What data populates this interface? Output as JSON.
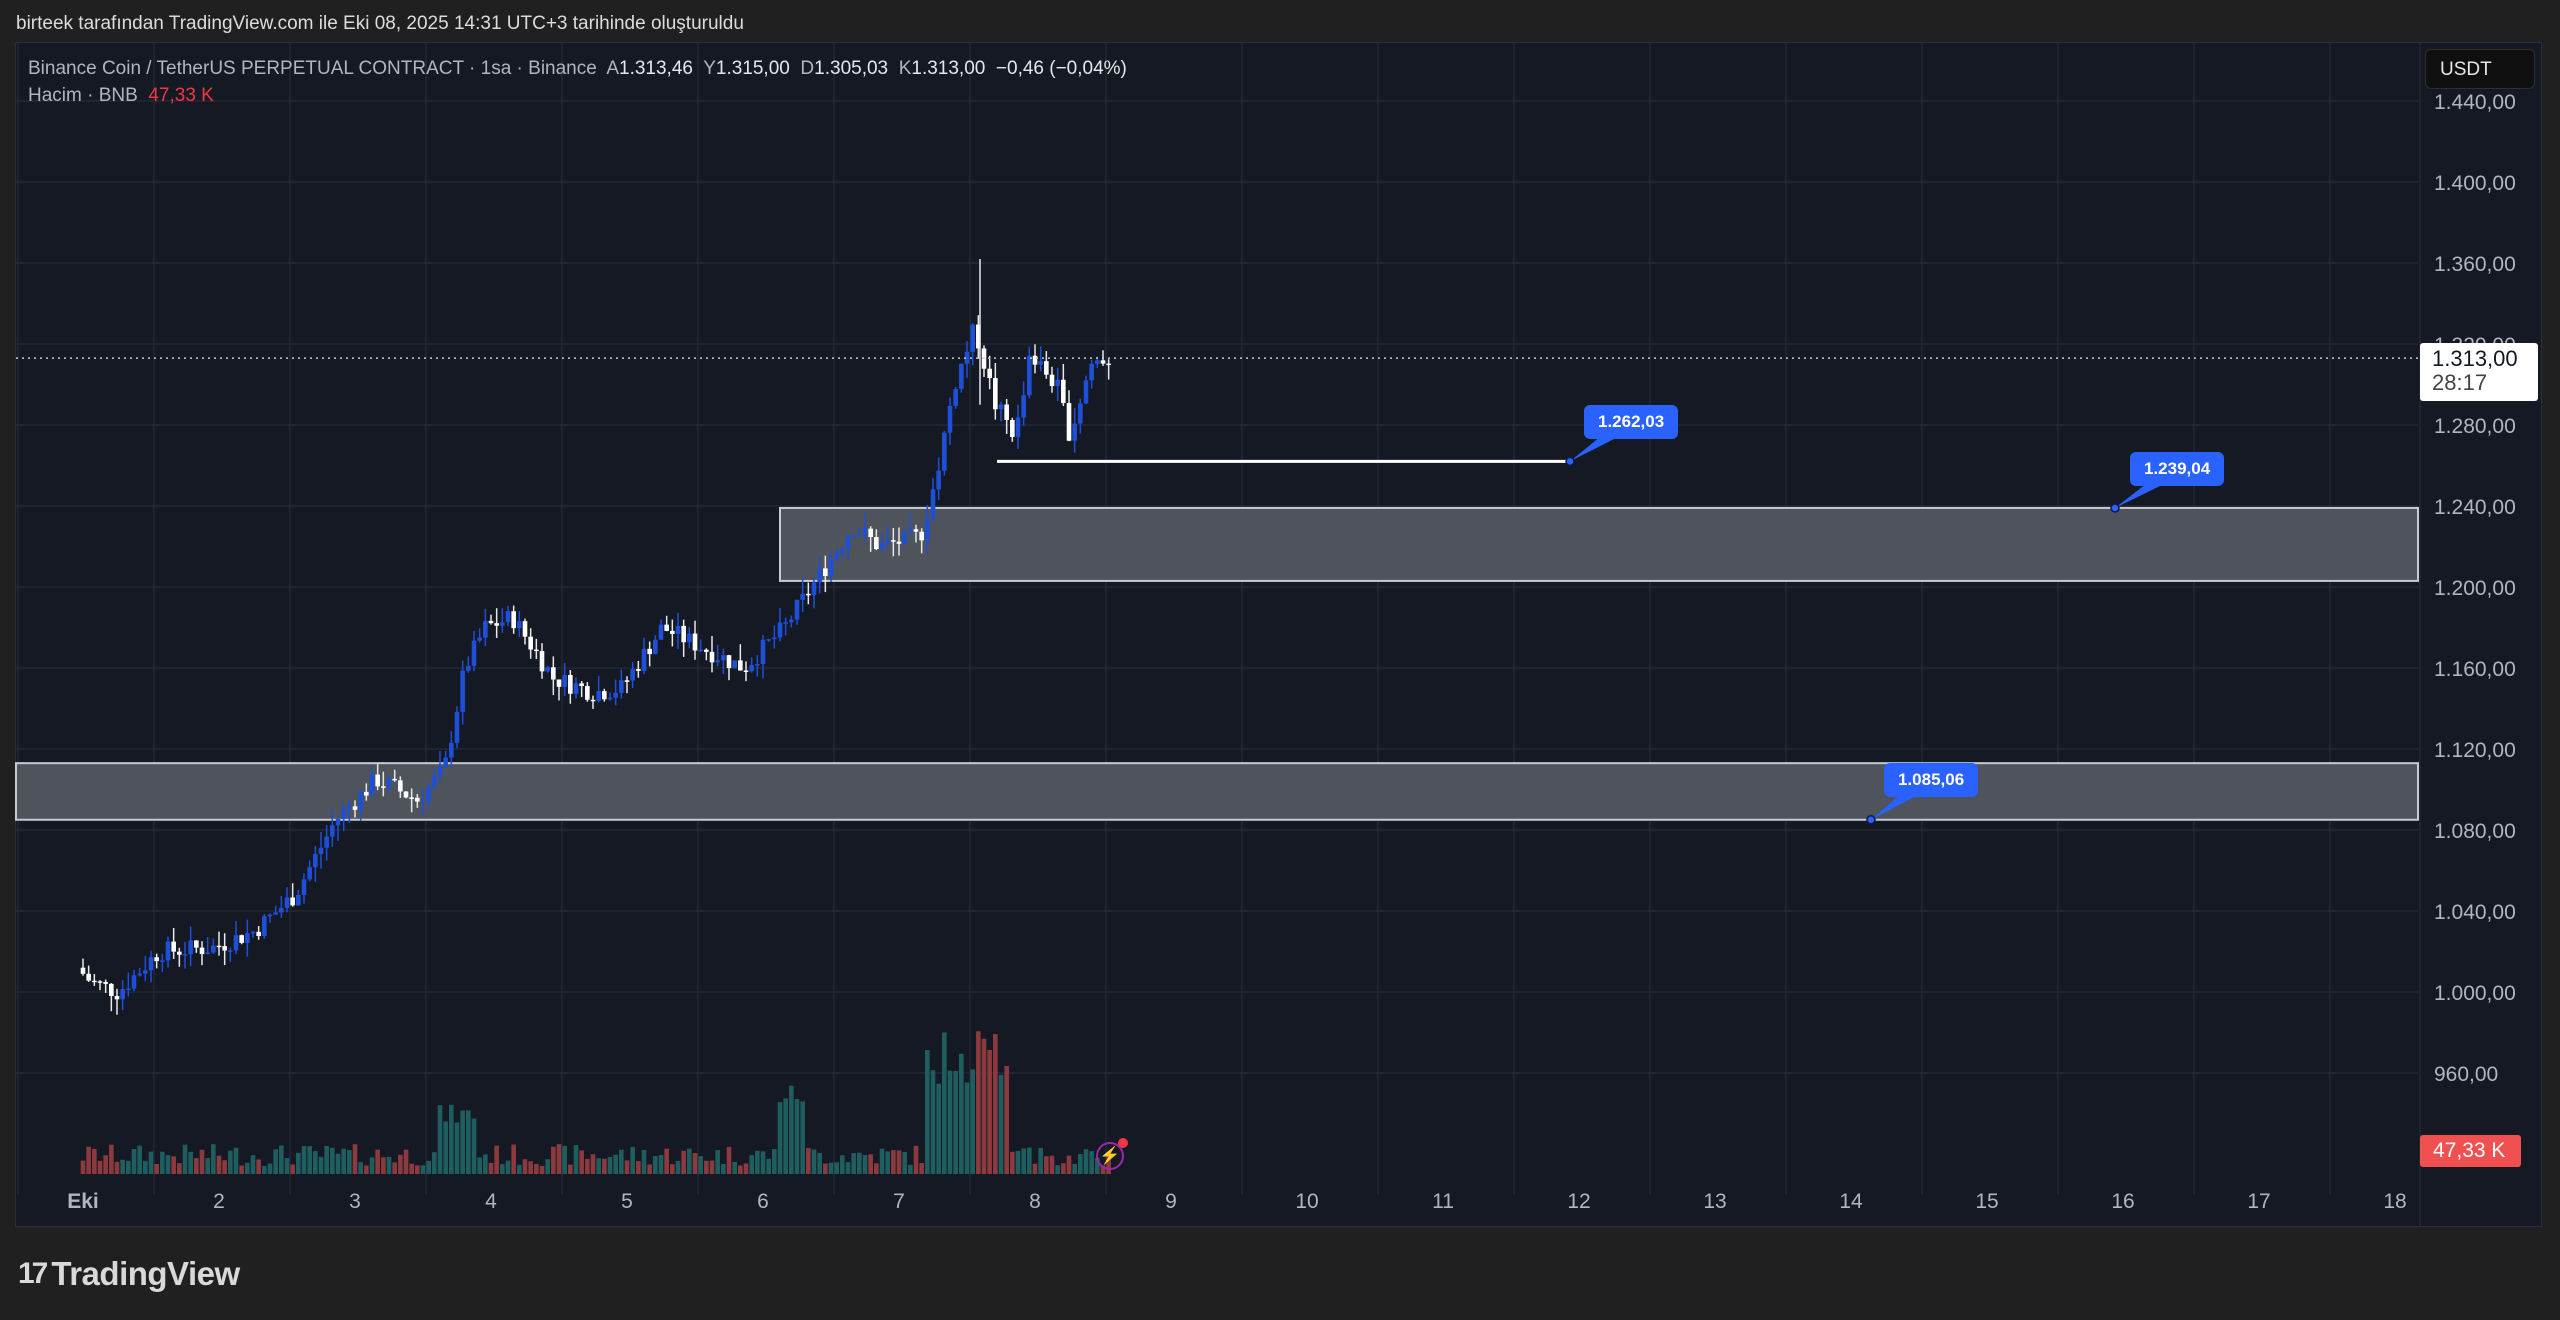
{
  "caption": "birteek tarafından TradingView.com ile Eki 08, 2025 14:31 UTC+3 tarihinde oluşturuldu",
  "legend": {
    "symbol": "Binance Coin / TetherUS PERPETUAL CONTRACT · 1sa · Binance",
    "open_label": "A",
    "open": "1.313,46",
    "high_label": "Y",
    "high": "1.315,00",
    "low_label": "D",
    "low": "1.305,03",
    "close_label": "K",
    "close": "1.313,00",
    "change": "−0,46 (−0,04%)",
    "volume_label": "Hacim · BNB",
    "volume_value": "47,33 K"
  },
  "currency_button": "USDT",
  "last_price": {
    "price": "1.313,00",
    "countdown": "28:17"
  },
  "volume_tag": "47,33 K",
  "callouts": [
    {
      "label": "1.262,03",
      "price": 1262.03
    },
    {
      "label": "1.239,04",
      "price": 1239.04
    },
    {
      "label": "1.085,06",
      "price": 1085.06
    }
  ],
  "logo_text": "TradingView",
  "colors": {
    "background": "#151924",
    "up_candle": "#1e4fd8",
    "down_candle": "#ffffff",
    "volume_up": "#1f5e5f",
    "volume_down": "#8c3a3e",
    "zone_fill": "#555861",
    "callout": "#2962ff",
    "volume_tag": "#f05050"
  },
  "chart_data": {
    "type": "candlestick",
    "title": "Binance Coin / TetherUS PERPETUAL CONTRACT · 1sa · Binance",
    "xlabel": "",
    "ylabel": "USDT",
    "x_ticks": [
      "Eki",
      "2",
      "3",
      "4",
      "5",
      "6",
      "7",
      "8",
      "9",
      "10",
      "11",
      "12",
      "13",
      "14",
      "15",
      "16",
      "17",
      "18"
    ],
    "y_ticks": [
      "1.440,00",
      "1.400,00",
      "1.360,00",
      "1.320,00",
      "1.280,00",
      "1.240,00",
      "1.200,00",
      "1.160,00",
      "1.120,00",
      "1.080,00",
      "1.040,00",
      "1.000,00",
      "960,00"
    ],
    "ylim": [
      940,
      1450
    ],
    "grid": true,
    "price_path_daily_closes": [
      {
        "day": "Eki 1",
        "close": 1020
      },
      {
        "day": "2",
        "close": 1025
      },
      {
        "day": "3",
        "close": 1100
      },
      {
        "day": "4",
        "close": 1175
      },
      {
        "day": "5",
        "close": 1155
      },
      {
        "day": "6",
        "close": 1185
      },
      {
        "day": "7",
        "close": 1225
      },
      {
        "day": "8",
        "close": 1313
      }
    ],
    "session_high": 1362,
    "last_close": 1313.0,
    "zones": [
      {
        "name": "upper-zone",
        "top": 1239.04,
        "bottom": 1203,
        "from": "6",
        "to": "extends right"
      },
      {
        "name": "lower-zone",
        "top": 1113,
        "bottom": 1085.06,
        "from": "Eki 1",
        "to": "extends right"
      }
    ],
    "horizontal_line": {
      "price": 1262.03,
      "from": "7 late",
      "to": "12"
    },
    "volume": {
      "label": "Hacim · BNB",
      "last": "47,33 K",
      "peak_day": "7-8"
    }
  }
}
